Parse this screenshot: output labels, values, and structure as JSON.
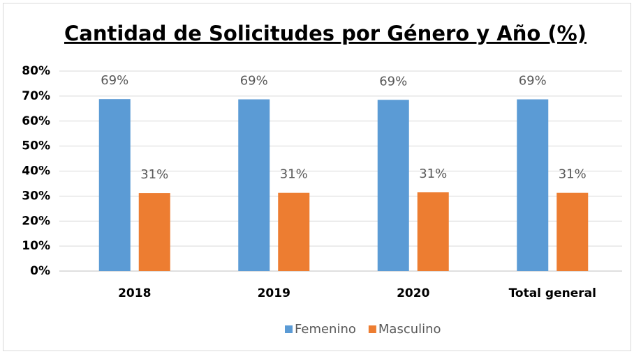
{
  "chart_data": {
    "type": "bar",
    "title": "Cantidad de Solicitudes por Género y Año (%)",
    "categories": [
      "2018",
      "2019",
      "2020",
      "Total general"
    ],
    "series": [
      {
        "name": "Femenino",
        "color": "#5b9bd5",
        "values": [
          68.8,
          68.7,
          68.5,
          68.7
        ],
        "value_labels": [
          "69%",
          "69%",
          "69%",
          "69%"
        ]
      },
      {
        "name": "Masculino",
        "color": "#ed7d31",
        "values": [
          31.2,
          31.3,
          31.5,
          31.3
        ],
        "value_labels": [
          "31%",
          "31%",
          "31%",
          "31%"
        ]
      }
    ],
    "ylim": [
      0,
      80
    ],
    "yticks": [
      {
        "value": 0,
        "label": "0%"
      },
      {
        "value": 10,
        "label": "10%"
      },
      {
        "value": 20,
        "label": "20%"
      },
      {
        "value": 30,
        "label": "30%"
      },
      {
        "value": 40,
        "label": "40%"
      },
      {
        "value": 50,
        "label": "50%"
      },
      {
        "value": 60,
        "label": "60%"
      },
      {
        "value": 70,
        "label": "70%"
      },
      {
        "value": 80,
        "label": "80%"
      }
    ],
    "grid": true,
    "legend": "bottom"
  }
}
